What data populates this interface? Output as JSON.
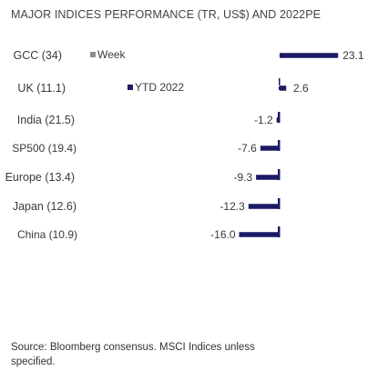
{
  "title": "MAJOR INDICES PERFORMANCE (TR, US$) AND 2022PE",
  "source": "Source: Bloomberg consensus. MSCI Indices unless specified.",
  "colors": {
    "week": "#8c8e94",
    "ytd": "#1b1a66",
    "text": "#3a3a3a"
  },
  "chart_data": {
    "type": "bar",
    "orientation": "horizontal",
    "title": "MAJOR INDICES PERFORMANCE (TR, US$) AND 2022PE",
    "categories": [
      "GCC (34)",
      "UK (11.1)",
      "India (21.5)",
      "SP500 (19.4)",
      "Europe (13.4)",
      "Japan (12.6)",
      "China (10.9)"
    ],
    "series": [
      {
        "name": "Week",
        "values": [
          null,
          null,
          null,
          null,
          null,
          null,
          null
        ]
      },
      {
        "name": "YTD 2022",
        "values": [
          23.1,
          2.6,
          -1.2,
          -7.6,
          -9.3,
          -12.3,
          -16.0
        ]
      }
    ],
    "data_labels": [
      "23.1",
      "2.6",
      "-1.2",
      "-7.6",
      "-9.3",
      "-12.3",
      "-16.0"
    ],
    "legend": "top-left",
    "grid": false
  }
}
